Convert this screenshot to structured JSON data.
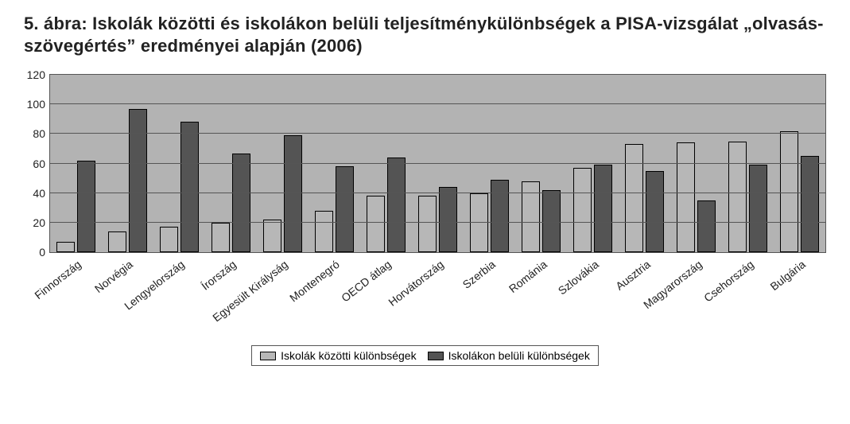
{
  "title": "5. ábra: Iskolák közötti és iskolákon belüli teljesítménykülönbségek a PISA-vizsgálat „olvasás-szövegértés” eredményei alapján (2006)",
  "chart": {
    "type": "grouped-bar",
    "background_color": "#ffffff",
    "plot_background_color": "#b3b3b3",
    "grid_color": "#555555",
    "text_color": "#222222",
    "label_fontsize": 14,
    "title_fontsize": 22,
    "ylim_min": 0,
    "ylim_max": 120,
    "ytick_step": 20,
    "yticks": [
      0,
      20,
      40,
      60,
      80,
      100,
      120
    ],
    "group_width_ratio": 0.74,
    "bar_gap_ratio": 0.08,
    "series": [
      {
        "key": "between",
        "label": "Iskolák közötti különbségek",
        "color": "#b7b7b7"
      },
      {
        "key": "within",
        "label": "Iskolákon belüli különbségek",
        "color": "#545454"
      }
    ],
    "categories": [
      "Finnország",
      "Norvégia",
      "Lengyelország",
      "Írország",
      "Egyesült Királyság",
      "Montenegró",
      "OECD átlag",
      "Horvátország",
      "Szerbia",
      "Románia",
      "Szlovákia",
      "Ausztria",
      "Magyarország",
      "Csehország",
      "Bulgária"
    ],
    "values": {
      "between": [
        7,
        14,
        17,
        20,
        22,
        28,
        38,
        38,
        40,
        48,
        57,
        73,
        74,
        75,
        82
      ],
      "within": [
        62,
        97,
        88,
        67,
        79,
        58,
        64,
        44,
        49,
        42,
        59,
        55,
        35,
        59,
        65
      ]
    },
    "xlabel_rotation_deg": -38
  }
}
